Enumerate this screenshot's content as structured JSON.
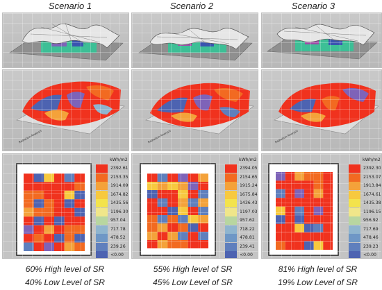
{
  "scenarios": [
    {
      "title": "Scenario 1",
      "high": "60% High level of SR",
      "low": "40% Low Level of SR",
      "legend_unit": "kWh/m2",
      "legend": [
        "2392.61<",
        "2153.35",
        "1914.09",
        "1674.82",
        "1435.56",
        "1196.30",
        "957.04",
        "717.78",
        "478.52",
        "239.26",
        "<0.00"
      ]
    },
    {
      "title": "Scenario 2",
      "high": "55% High level of SR",
      "low": "45% Low Level of SR",
      "legend_unit": "kWh/m2",
      "legend": [
        "2394.05<",
        "2154.65",
        "1915.24",
        "1675.84",
        "1436.43",
        "1197.03",
        "957.62",
        "718.22",
        "478.81",
        "239.41",
        "<0.00"
      ]
    },
    {
      "title": "Scenario 3",
      "high": "81% High level of SR",
      "low": "19% Low Level of SR",
      "legend_unit": "kWh/m2",
      "legend": [
        "2392.30<",
        "2153.07",
        "1913.84",
        "1674.61",
        "1435.38",
        "1196.15",
        "956.92",
        "717.69",
        "478.46",
        "239.23",
        "<0.00"
      ]
    }
  ],
  "legend_colors": [
    "#f0321e",
    "#f26a21",
    "#f4a23a",
    "#f7c93f",
    "#f3e34c",
    "#f0e68a",
    "#b8d6a0",
    "#8fb5cf",
    "#6e97c6",
    "#5f7fbd",
    "#4d63b1"
  ]
}
